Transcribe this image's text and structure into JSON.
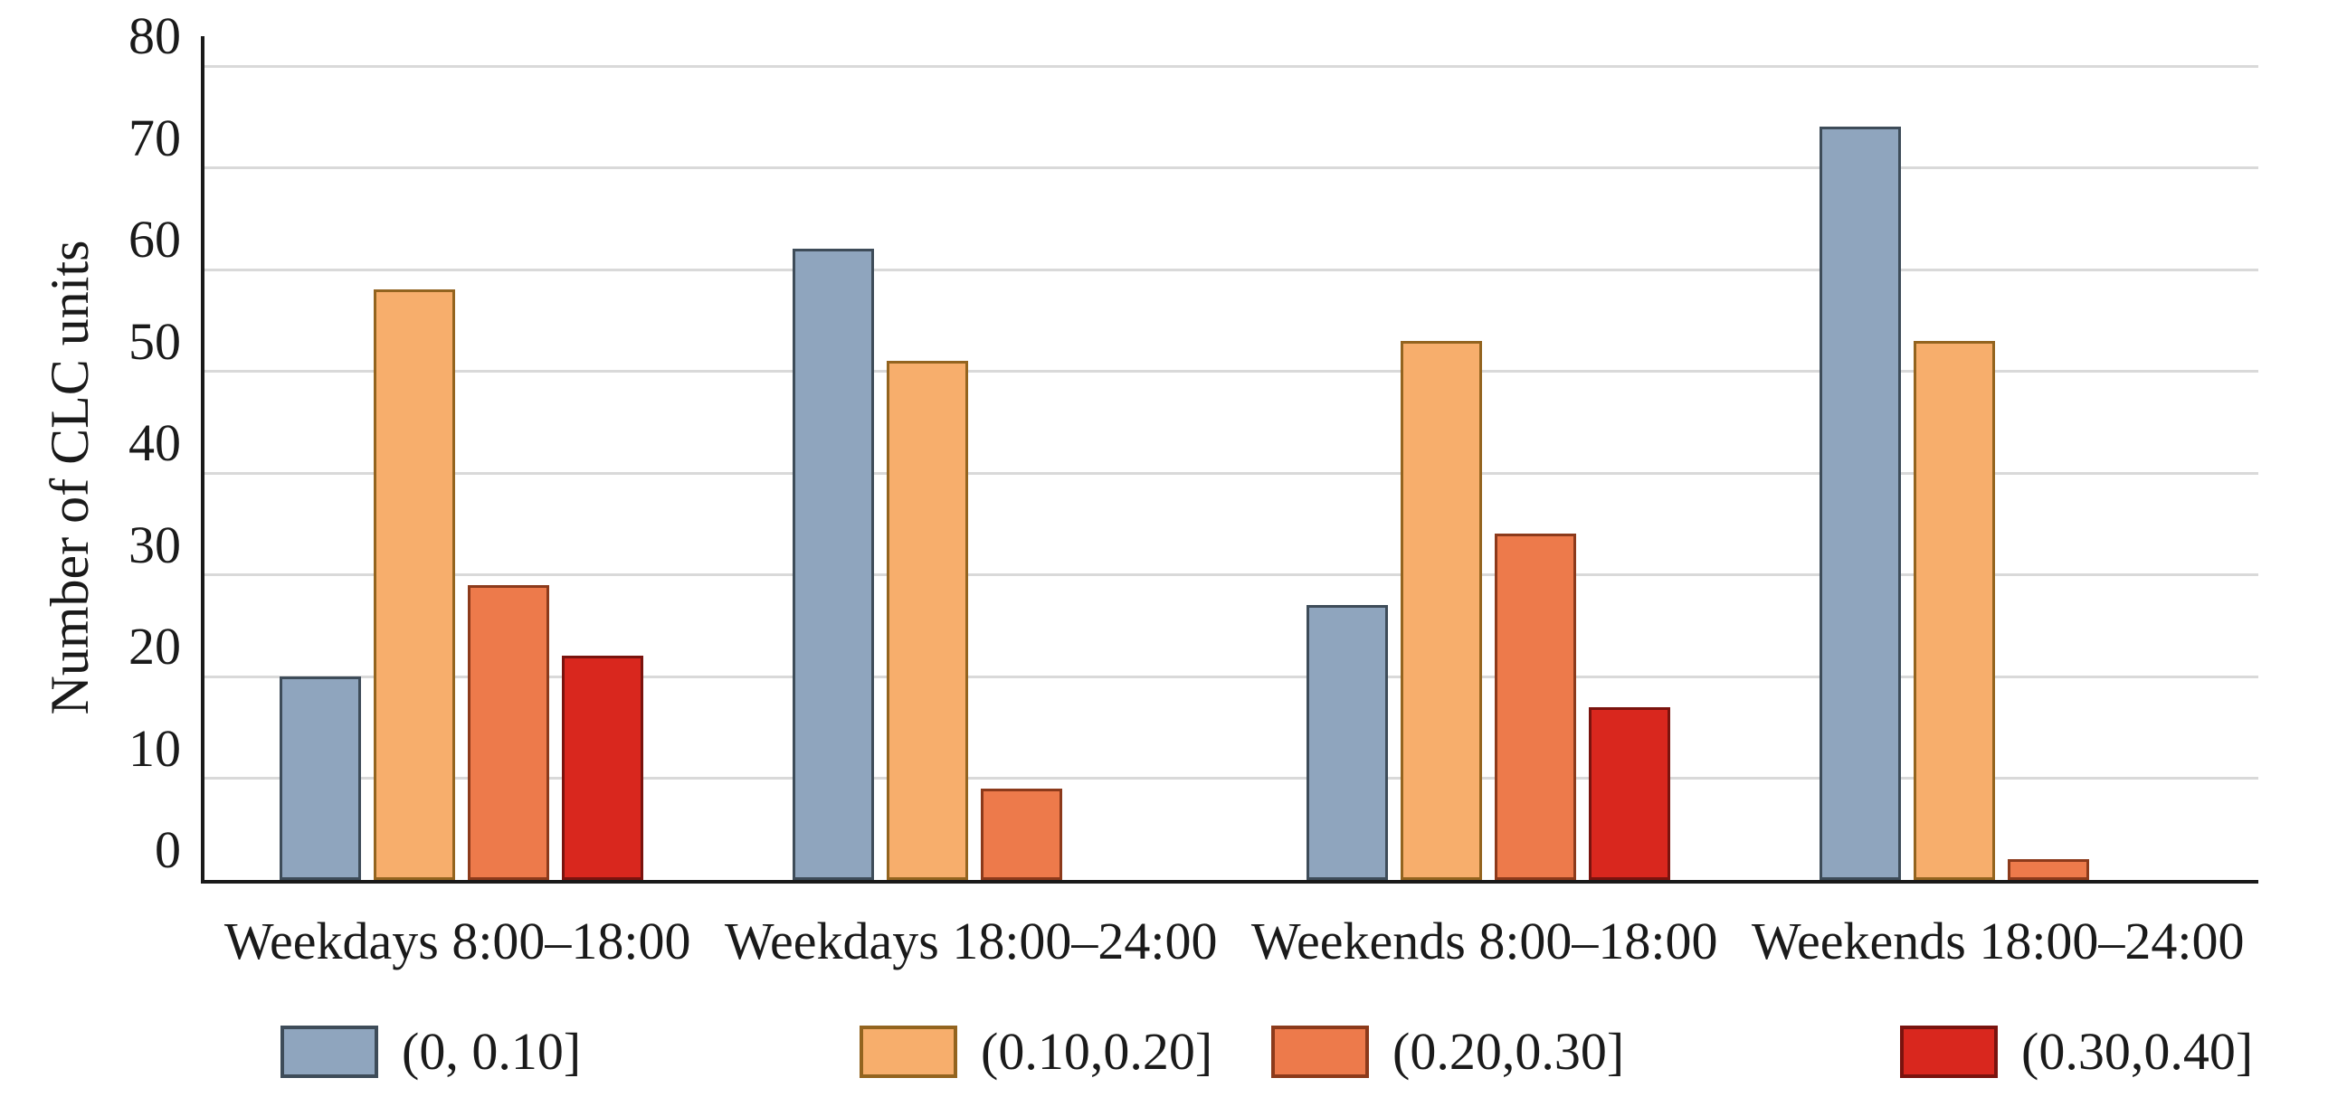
{
  "chart_data": {
    "type": "bar",
    "title": "",
    "ylabel": "Number of CLC units",
    "xlabel": "",
    "ylim": [
      0,
      80
    ],
    "ytick_step": 10,
    "grid": true,
    "legend_position": "bottom",
    "gridline_color": "#d9d9d9",
    "axis_color": "#1a1a1a",
    "categories": [
      "Weekdays 8:00–18:00",
      "Weekdays 18:00–24:00",
      "Weekends 8:00–18:00",
      "Weekends 18:00–24:00"
    ],
    "series": [
      {
        "name": "(0, 0.10]",
        "color": "#8fa5be",
        "border": "#3e4c59",
        "values": [
          20,
          62,
          27,
          74
        ]
      },
      {
        "name": "(0.10,0.20]",
        "color": "#f7ae6c",
        "border": "#93641f",
        "values": [
          58,
          51,
          53,
          53
        ]
      },
      {
        "name": "(0.20,0.30]",
        "color": "#ed7a4b",
        "border": "#8c3a1b",
        "values": [
          29,
          9,
          34,
          2
        ]
      },
      {
        "name": "(0.30,0.40]",
        "color": "#d9271e",
        "border": "#7a130e",
        "values": [
          22,
          0,
          17,
          0
        ]
      }
    ]
  }
}
